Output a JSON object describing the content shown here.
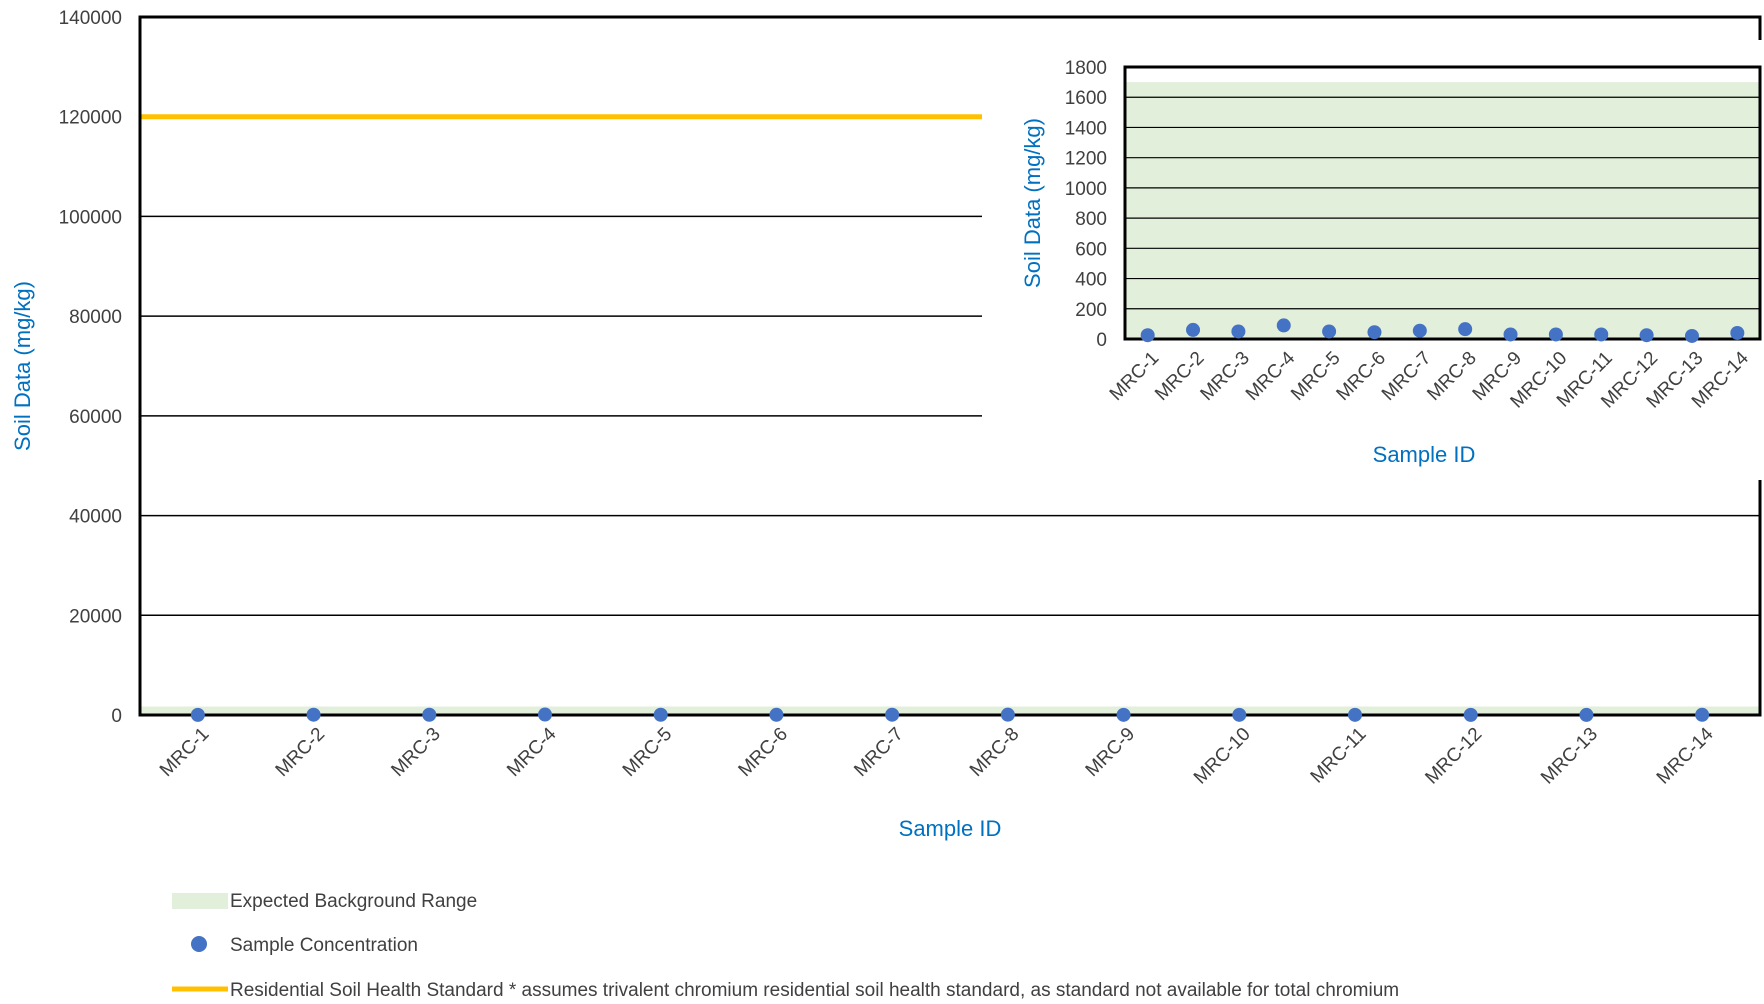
{
  "chart_data": [
    {
      "type": "scatter",
      "xlabel": "Sample ID",
      "ylabel": "Soil Data (mg/kg)",
      "ylim": [
        0,
        140000
      ],
      "yticks": [
        "0",
        "20000",
        "40000",
        "60000",
        "80000",
        "100000",
        "120000",
        "140000"
      ],
      "categories": [
        "MRC-1",
        "MRC-2",
        "MRC-3",
        "MRC-4",
        "MRC-5",
        "MRC-6",
        "MRC-7",
        "MRC-8",
        "MRC-9",
        "MRC-10",
        "MRC-11",
        "MRC-12",
        "MRC-13",
        "MRC-14"
      ],
      "series": [
        {
          "name": "Sample Concentration",
          "values": [
            25,
            60,
            50,
            90,
            50,
            45,
            55,
            65,
            30,
            30,
            30,
            25,
            20,
            40
          ]
        }
      ],
      "background_range": [
        0,
        1700
      ],
      "standard_line": 120000,
      "grid": true
    },
    {
      "type": "scatter",
      "xlabel": "Sample ID",
      "ylabel": "Soil Data (mg/kg)",
      "ylim": [
        0,
        1800
      ],
      "yticks": [
        "0",
        "200",
        "400",
        "600",
        "800",
        "1000",
        "1200",
        "1400",
        "1600",
        "1800"
      ],
      "categories": [
        "MRC-1",
        "MRC-2",
        "MRC-3",
        "MRC-4",
        "MRC-5",
        "MRC-6",
        "MRC-7",
        "MRC-8",
        "MRC-9",
        "MRC-10",
        "MRC-11",
        "MRC-12",
        "MRC-13",
        "MRC-14"
      ],
      "series": [
        {
          "name": "Sample Concentration",
          "values": [
            25,
            60,
            50,
            90,
            50,
            45,
            55,
            65,
            30,
            30,
            30,
            25,
            20,
            40
          ]
        }
      ],
      "background_range": [
        0,
        1700
      ],
      "grid": true
    }
  ],
  "legend": [
    {
      "label": "Expected Background Range",
      "color": "#E2EFDA",
      "symbol": "band"
    },
    {
      "label": "Sample Concentration",
      "color": "#4472C4",
      "symbol": "dot"
    },
    {
      "label": "Residential Soil Health Standard * assumes trivalent chromium residential soil health standard, as standard not available for total chromium",
      "color": "#FFC000",
      "symbol": "line"
    }
  ],
  "colors": {
    "axis_title": "#0070C0",
    "band": "#E2EFDA",
    "dot": "#4472C4",
    "standard": "#FFC000"
  }
}
